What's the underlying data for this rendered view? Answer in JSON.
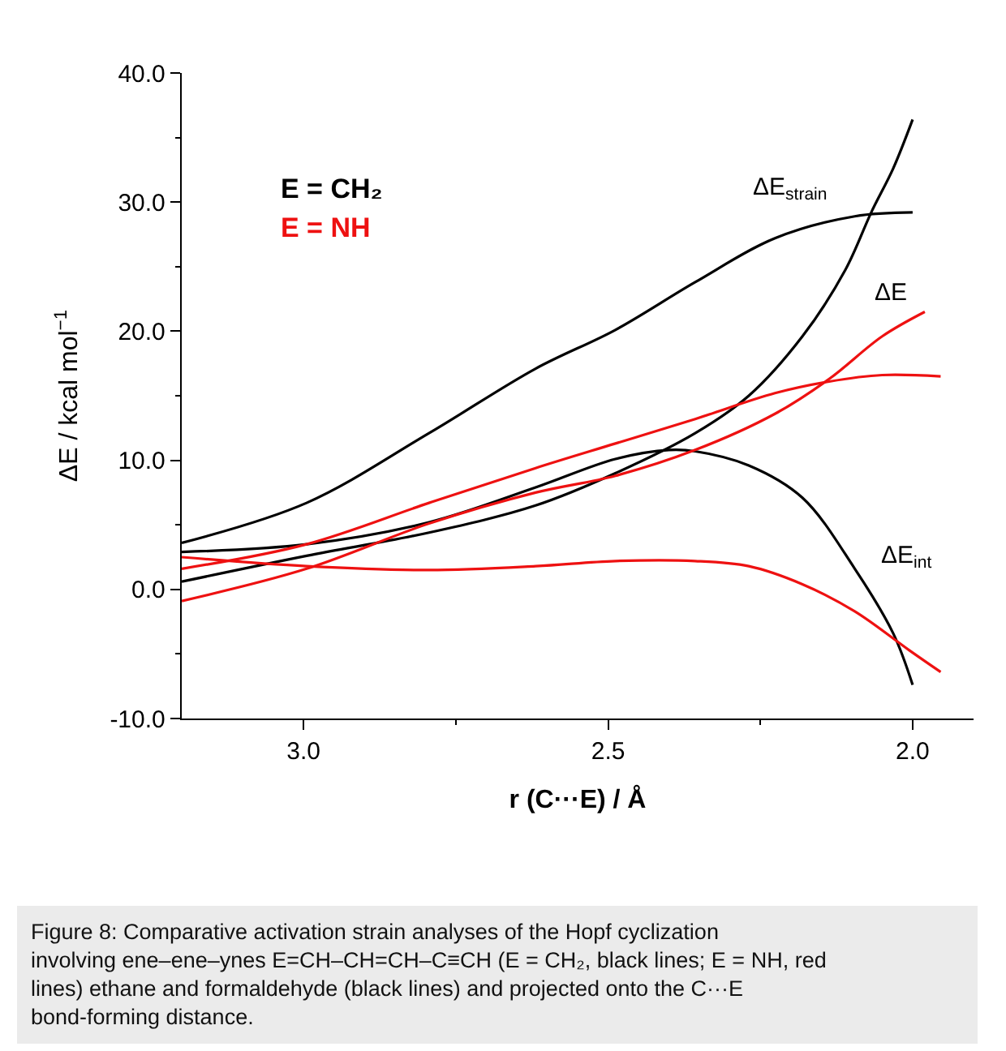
{
  "chart_data": {
    "type": "line",
    "xlabel": "r (C···E) / Å",
    "ylabel": "ΔE / kcal mol$^{−1}$",
    "xlim": [
      3.2,
      1.9
    ],
    "xticks": [
      {
        "value": 3.0,
        "label": "3.0"
      },
      {
        "value": 2.75,
        "label": null
      },
      {
        "value": 2.5,
        "label": "2.5"
      },
      {
        "value": 2.25,
        "label": null
      },
      {
        "value": 2.0,
        "label": "2.0"
      }
    ],
    "ylim": [
      -10,
      40
    ],
    "yticks": [
      {
        "value": -10,
        "label": "-10.0"
      },
      {
        "value": -5,
        "label": null
      },
      {
        "value": 0,
        "label": "0.0"
      },
      {
        "value": 5,
        "label": null
      },
      {
        "value": 10,
        "label": "10.0"
      },
      {
        "value": 15,
        "label": null
      },
      {
        "value": 20,
        "label": "20.0"
      },
      {
        "value": 25,
        "label": null
      },
      {
        "value": 30,
        "label": "30.0"
      },
      {
        "value": 35,
        "label": null
      },
      {
        "value": 40,
        "label": "40.0"
      }
    ],
    "legend": false,
    "series": [
      {
        "name": "E = CH₂",
        "color": "#000000",
        "x": [
          3.2,
          2.995,
          2.794,
          2.619,
          2.488,
          2.357,
          2.226,
          2.095,
          2.0
        ],
        "values": [
          3.6,
          6.7,
          12.1,
          17.1,
          20.1,
          23.8,
          27.2,
          28.9,
          29.2
        ]
      },
      {
        "color": "#000000",
        "x": [
          3.2,
          2.995,
          2.794,
          2.619,
          2.488,
          2.357,
          2.269,
          2.181,
          2.111,
          2.067,
          2.032,
          2.0
        ],
        "values": [
          0.6,
          2.6,
          4.4,
          6.5,
          9.0,
          12.1,
          15.0,
          19.6,
          24.7,
          29.3,
          32.6,
          36.4
        ]
      },
      {
        "color": "#000000",
        "x": [
          3.2,
          2.995,
          2.794,
          2.619,
          2.488,
          2.4,
          2.357,
          2.269,
          2.181,
          2.095,
          2.032,
          2.0
        ],
        "values": [
          2.9,
          3.5,
          5.2,
          7.9,
          10.1,
          10.8,
          10.7,
          9.6,
          7.1,
          1.6,
          -3.4,
          -7.4
        ]
      },
      {
        "name": "E = NH",
        "color": "#ee1111",
        "x": [
          3.2,
          2.995,
          2.794,
          2.619,
          2.488,
          2.357,
          2.226,
          2.137,
          2.05,
          1.954
        ],
        "values": [
          1.6,
          3.5,
          6.7,
          9.4,
          11.3,
          13.2,
          15.2,
          16.1,
          16.6,
          16.5
        ]
      },
      {
        "color": "#ee1111",
        "x": [
          3.2,
          2.995,
          2.794,
          2.619,
          2.488,
          2.357,
          2.226,
          2.137,
          2.05,
          1.98
        ],
        "values": [
          -0.9,
          1.6,
          5.1,
          7.5,
          8.8,
          10.8,
          13.6,
          16.3,
          19.6,
          21.5
        ]
      },
      {
        "color": "#ee1111",
        "x": [
          3.2,
          2.995,
          2.794,
          2.619,
          2.488,
          2.357,
          2.269,
          2.181,
          2.095,
          2.006,
          1.954
        ],
        "values": [
          2.5,
          1.8,
          1.5,
          1.8,
          2.2,
          2.2,
          1.8,
          0.4,
          -1.7,
          -4.7,
          -6.4
        ]
      }
    ],
    "annotations": [
      "ΔE$_{strain}$",
      "ΔE",
      "ΔE$_{int}$",
      "Figure 8: Comparative activation strain analyses of the Hopf cyclization involving ene–ene–ynes E=CH–CH=CH–C≡CH (E = CH₂, black lines; E = NH, red lines) ethane and formaldehyde (black lines) and projected onto the C···E bond-forming distance."
    ]
  }
}
